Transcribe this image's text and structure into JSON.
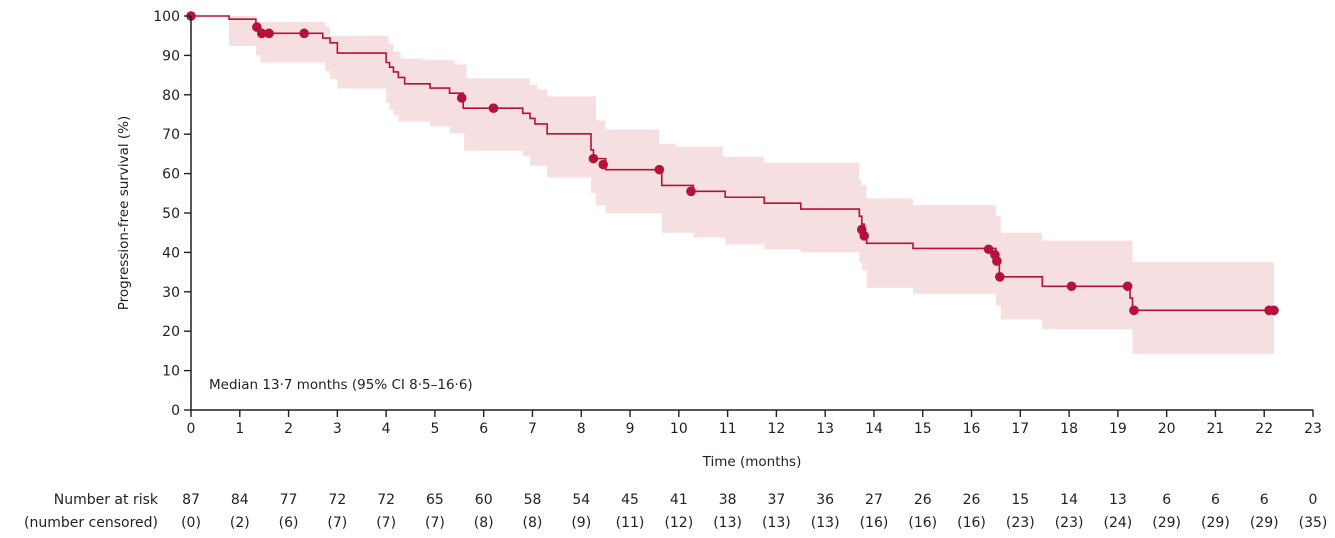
{
  "chart_data": {
    "type": "line",
    "subtype": "kaplan-meier",
    "xlabel": "Time (months)",
    "ylabel": "Progression-free survival (%)",
    "xlim": [
      0,
      23
    ],
    "ylim": [
      0,
      100
    ],
    "x_ticks": [
      0,
      1,
      2,
      3,
      4,
      5,
      6,
      7,
      8,
      9,
      10,
      11,
      12,
      13,
      14,
      15,
      16,
      17,
      18,
      19,
      20,
      21,
      22,
      23
    ],
    "y_ticks": [
      0,
      10,
      20,
      30,
      40,
      50,
      60,
      70,
      80,
      90,
      100
    ],
    "grid": false,
    "annotation": "Median 13·7 months (95% CI 8·5–16·6)",
    "colors": {
      "line": "#b5123a",
      "ci_band": "#f6dfe0",
      "axis": "#231f20"
    },
    "series": [
      {
        "name": "Progression-free survival",
        "steps": [
          [
            0,
            100
          ],
          [
            0.78,
            99.2
          ],
          [
            1.33,
            97.2
          ],
          [
            1.42,
            95.6
          ],
          [
            2.7,
            94.4
          ],
          [
            2.85,
            93.2
          ],
          [
            3.0,
            90.6
          ],
          [
            4.0,
            88.2
          ],
          [
            4.07,
            87.0
          ],
          [
            4.15,
            85.8
          ],
          [
            4.25,
            84.4
          ],
          [
            4.38,
            82.8
          ],
          [
            4.9,
            81.7
          ],
          [
            5.3,
            80.4
          ],
          [
            5.58,
            76.6
          ],
          [
            6.8,
            75.3
          ],
          [
            6.95,
            74.0
          ],
          [
            7.05,
            72.6
          ],
          [
            7.3,
            70.1
          ],
          [
            8.2,
            66.0
          ],
          [
            8.25,
            63.8
          ],
          [
            8.5,
            61.0
          ],
          [
            9.65,
            57.0
          ],
          [
            10.3,
            55.5
          ],
          [
            10.95,
            54.0
          ],
          [
            11.75,
            52.5
          ],
          [
            12.5,
            51.0
          ],
          [
            13.7,
            49.2
          ],
          [
            13.75,
            47.2
          ],
          [
            13.8,
            45.0
          ],
          [
            13.85,
            42.3
          ],
          [
            14.8,
            41.0
          ],
          [
            16.5,
            38.5
          ],
          [
            16.57,
            33.8
          ],
          [
            17.45,
            31.4
          ],
          [
            19.25,
            28.4
          ],
          [
            19.3,
            25.3
          ],
          [
            22.2,
            25.3
          ]
        ],
        "ci_upper": [
          [
            0,
            100
          ],
          [
            0.78,
            100
          ],
          [
            1.33,
            98.5
          ],
          [
            2.75,
            97.3
          ],
          [
            2.85,
            95.0
          ],
          [
            4.05,
            93.0
          ],
          [
            4.15,
            91.0
          ],
          [
            4.3,
            89.2
          ],
          [
            4.75,
            88.8
          ],
          [
            5.4,
            87.7
          ],
          [
            5.65,
            84.2
          ],
          [
            6.95,
            82.5
          ],
          [
            7.1,
            81.3
          ],
          [
            7.3,
            79.6
          ],
          [
            8.3,
            73.5
          ],
          [
            8.5,
            71.2
          ],
          [
            9.6,
            67.6
          ],
          [
            9.95,
            66.8
          ],
          [
            10.9,
            64.3
          ],
          [
            11.75,
            62.8
          ],
          [
            13.7,
            58.2
          ],
          [
            13.75,
            57.0
          ],
          [
            13.85,
            53.7
          ],
          [
            14.8,
            52.0
          ],
          [
            16.5,
            49.2
          ],
          [
            16.6,
            45.0
          ],
          [
            17.45,
            43.0
          ],
          [
            19.3,
            37.6
          ],
          [
            22.2,
            37.6
          ]
        ],
        "ci_lower": [
          [
            0,
            100
          ],
          [
            0.78,
            92.4
          ],
          [
            1.33,
            90.0
          ],
          [
            1.42,
            88.2
          ],
          [
            2.75,
            86.0
          ],
          [
            2.85,
            84.0
          ],
          [
            3.0,
            81.6
          ],
          [
            4.0,
            78.0
          ],
          [
            4.07,
            76.2
          ],
          [
            4.15,
            74.8
          ],
          [
            4.25,
            73.2
          ],
          [
            4.9,
            72.0
          ],
          [
            5.3,
            70.2
          ],
          [
            5.6,
            65.8
          ],
          [
            6.8,
            64.5
          ],
          [
            6.95,
            62.0
          ],
          [
            7.3,
            59.0
          ],
          [
            8.2,
            55.0
          ],
          [
            8.3,
            52.0
          ],
          [
            8.5,
            50.0
          ],
          [
            9.65,
            45.0
          ],
          [
            10.3,
            43.8
          ],
          [
            10.95,
            42.0
          ],
          [
            11.75,
            40.8
          ],
          [
            12.5,
            40.0
          ],
          [
            13.7,
            37.5
          ],
          [
            13.75,
            35.5
          ],
          [
            13.85,
            31.0
          ],
          [
            14.8,
            29.5
          ],
          [
            16.5,
            26.5
          ],
          [
            16.6,
            23.0
          ],
          [
            17.45,
            20.5
          ],
          [
            19.3,
            14.2
          ],
          [
            22.2,
            14.2
          ]
        ],
        "censored": [
          [
            0,
            100
          ],
          [
            1.35,
            97.2
          ],
          [
            1.45,
            95.6
          ],
          [
            1.6,
            95.6
          ],
          [
            2.32,
            95.6
          ],
          [
            5.55,
            79.2
          ],
          [
            6.2,
            76.6
          ],
          [
            8.25,
            63.8
          ],
          [
            8.45,
            62.3
          ],
          [
            9.6,
            61.0
          ],
          [
            10.25,
            55.5
          ],
          [
            13.75,
            45.8
          ],
          [
            13.8,
            44.2
          ],
          [
            16.35,
            40.8
          ],
          [
            16.48,
            39.4
          ],
          [
            16.52,
            37.8
          ],
          [
            16.58,
            33.8
          ],
          [
            18.05,
            31.4
          ],
          [
            19.2,
            31.4
          ],
          [
            19.33,
            25.3
          ],
          [
            22.1,
            25.3
          ],
          [
            22.2,
            25.3
          ]
        ]
      }
    ],
    "risk_table": {
      "row_labels": [
        "Number at risk",
        "(number censored)"
      ],
      "at_risk": [
        "87",
        "84",
        "77",
        "72",
        "72",
        "65",
        "60",
        "58",
        "54",
        "45",
        "41",
        "38",
        "37",
        "36",
        "27",
        "26",
        "26",
        "15",
        "14",
        "13",
        "6",
        "6",
        "6",
        "0"
      ],
      "censored": [
        "(0)",
        "(2)",
        "(6)",
        "(7)",
        "(7)",
        "(7)",
        "(8)",
        "(8)",
        "(9)",
        "(11)",
        "(12)",
        "(13)",
        "(13)",
        "(13)",
        "(16)",
        "(16)",
        "(16)",
        "(23)",
        "(23)",
        "(24)",
        "(29)",
        "(29)",
        "(29)",
        "(35)"
      ]
    }
  }
}
